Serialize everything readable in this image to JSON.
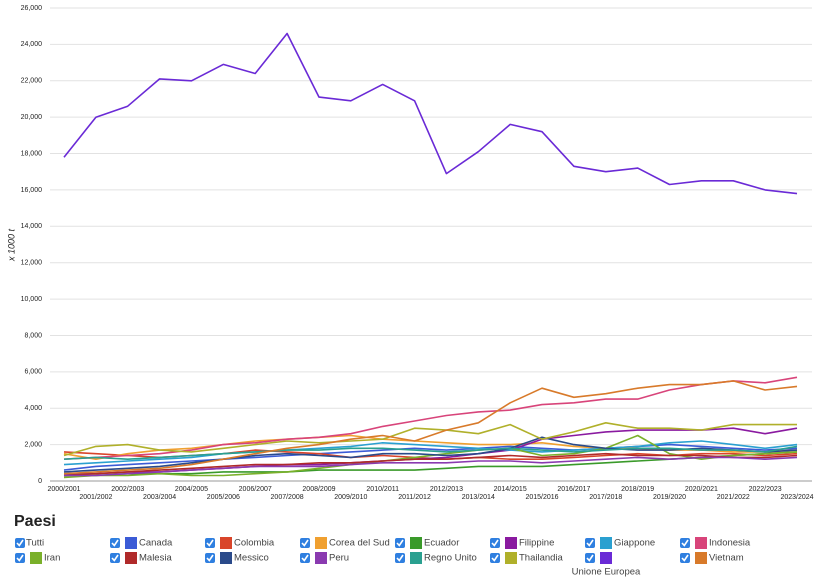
{
  "chart_data": {
    "type": "line",
    "y_label": "x 1000 t",
    "categories": [
      "2000/2001",
      "2001/2002",
      "2002/2003",
      "2003/2004",
      "2004/2005",
      "2005/2006",
      "2006/2007",
      "2007/2008",
      "2008/2009",
      "2009/2010",
      "2010/2011",
      "2011/2012",
      "2012/2013",
      "2013/2014",
      "2014/2015",
      "2015/2016",
      "2016/2017",
      "2017/2018",
      "2018/2019",
      "2019/2020",
      "2020/2021",
      "2021/2022",
      "2022/2023",
      "2023/2024"
    ],
    "ylim": [
      0,
      26000
    ],
    "yticks": [
      {
        "value": 0,
        "label": "0"
      },
      {
        "value": 2000,
        "label": "2,000"
      },
      {
        "value": 4000,
        "label": "4,000"
      },
      {
        "value": 6000,
        "label": "6,000"
      },
      {
        "value": 8000,
        "label": "8,000"
      },
      {
        "value": 10000,
        "label": "10,000"
      },
      {
        "value": 12000,
        "label": "12,000"
      },
      {
        "value": 14000,
        "label": "14,000"
      },
      {
        "value": 16000,
        "label": "16,000"
      },
      {
        "value": 18000,
        "label": "18,000"
      },
      {
        "value": 20000,
        "label": "20,000"
      },
      {
        "value": 22000,
        "label": "22,000"
      },
      {
        "value": 24000,
        "label": "24,000"
      },
      {
        "value": 26000,
        "label": "26,000"
      }
    ],
    "grid": true,
    "legend_title": "Paesi",
    "legend_all": "Tutti",
    "series": [
      {
        "name": "Canada",
        "color": "#3b5bd6",
        "values": [
          600,
          800,
          900,
          1000,
          1100,
          1200,
          1300,
          1400,
          1500,
          1600,
          1700,
          1800,
          1700,
          1800,
          1900,
          1800,
          1700,
          1800,
          1900,
          2000,
          1900,
          1800,
          1700,
          1800
        ]
      },
      {
        "name": "Colombia",
        "color": "#d9452a",
        "values": [
          1600,
          1500,
          1400,
          1300,
          1400,
          1500,
          1700,
          1600,
          1500,
          1300,
          1400,
          1300,
          1200,
          1300,
          1200,
          1200,
          1300,
          1400,
          1500,
          1400,
          1500,
          1500,
          1400,
          1500
        ]
      },
      {
        "name": "Corea del Sud",
        "color": "#f0a030",
        "values": [
          1500,
          1200,
          1500,
          1700,
          1800,
          2000,
          2200,
          2300,
          2400,
          2500,
          2300,
          2200,
          2100,
          2000,
          2000,
          2100,
          1900,
          1800,
          1800,
          1700,
          1700,
          1600,
          1600,
          1700
        ]
      },
      {
        "name": "Ecuador",
        "color": "#3a9a2a",
        "values": [
          300,
          300,
          400,
          400,
          400,
          500,
          500,
          500,
          600,
          600,
          600,
          600,
          700,
          800,
          800,
          800,
          900,
          1000,
          1100,
          1200,
          1300,
          1400,
          1500,
          1600
        ]
      },
      {
        "name": "Filippine",
        "color": "#8a1aa0",
        "values": [
          400,
          400,
          500,
          500,
          600,
          700,
          800,
          900,
          900,
          1000,
          1100,
          1200,
          1300,
          1500,
          1700,
          2300,
          2500,
          2700,
          2800,
          2800,
          2800,
          2900,
          2600,
          2900
        ]
      },
      {
        "name": "Giappone",
        "color": "#2aa0d0",
        "values": [
          900,
          1000,
          1100,
          1200,
          1300,
          1500,
          1600,
          1700,
          1800,
          1900,
          2100,
          2000,
          1900,
          1800,
          1700,
          1600,
          1700,
          1800,
          1900,
          2100,
          2200,
          2000,
          1800,
          2000
        ]
      },
      {
        "name": "Indonesia",
        "color": "#d8447a",
        "values": [
          1200,
          1300,
          1400,
          1500,
          1700,
          2000,
          2100,
          2300,
          2400,
          2600,
          3000,
          3300,
          3600,
          3800,
          3900,
          4200,
          4300,
          4500,
          4500,
          5000,
          5300,
          5500,
          5400,
          5700
        ]
      },
      {
        "name": "Iran",
        "color": "#7ab02a",
        "values": [
          200,
          300,
          300,
          400,
          300,
          300,
          400,
          500,
          700,
          900,
          1100,
          1300,
          1500,
          1700,
          1800,
          1400,
          1500,
          1800,
          2500,
          1500,
          1200,
          1400,
          1500,
          1600
        ]
      },
      {
        "name": "Malesia",
        "color": "#b02a2a",
        "values": [
          300,
          400,
          500,
          600,
          700,
          800,
          900,
          900,
          1000,
          1000,
          1100,
          1200,
          1200,
          1300,
          1400,
          1300,
          1400,
          1500,
          1400,
          1400,
          1400,
          1300,
          1300,
          1400
        ]
      },
      {
        "name": "Messico",
        "color": "#2a4a8a",
        "values": [
          500,
          600,
          700,
          800,
          1000,
          1200,
          1400,
          1500,
          1400,
          1300,
          1500,
          1500,
          1400,
          1500,
          1800,
          2400,
          2000,
          1800,
          1700,
          1700,
          1800,
          1700,
          1600,
          1700
        ]
      },
      {
        "name": "Peru",
        "color": "#8a3ab0",
        "values": [
          300,
          300,
          400,
          500,
          600,
          700,
          800,
          800,
          800,
          900,
          1000,
          1000,
          1000,
          1100,
          1100,
          1000,
          1100,
          1200,
          1300,
          1200,
          1300,
          1300,
          1200,
          1300
        ]
      },
      {
        "name": "Regno Unito",
        "color": "#2aa090",
        "values": [
          1200,
          1300,
          1200,
          1300,
          1400,
          1500,
          1600,
          1700,
          1700,
          1800,
          1800,
          1700,
          1600,
          1700,
          1800,
          1700,
          1600,
          1700,
          1800,
          1800,
          1700,
          1700,
          1600,
          1900
        ]
      },
      {
        "name": "Thailandia",
        "color": "#b0b02a",
        "values": [
          1400,
          1900,
          2000,
          1700,
          1600,
          1800,
          2000,
          2200,
          2100,
          2200,
          2300,
          2900,
          2800,
          2600,
          3100,
          2300,
          2700,
          3200,
          2900,
          2900,
          2800,
          3100,
          3100,
          3100
        ]
      },
      {
        "name": "Unione Europea",
        "color": "#6a2ad6",
        "values": [
          17800,
          20000,
          20600,
          22100,
          22000,
          22900,
          22400,
          24600,
          21100,
          20900,
          21800,
          20900,
          16900,
          18100,
          19600,
          19200,
          17300,
          17000,
          17200,
          16300,
          16500,
          16500,
          16000,
          15800
        ]
      },
      {
        "name": "Vietnam",
        "color": "#d87a2a",
        "values": [
          400,
          500,
          600,
          700,
          900,
          1200,
          1500,
          1800,
          2000,
          2300,
          2500,
          2200,
          2800,
          3200,
          4300,
          5100,
          4600,
          4800,
          5100,
          5300,
          5300,
          5500,
          5000,
          5200
        ]
      }
    ]
  }
}
